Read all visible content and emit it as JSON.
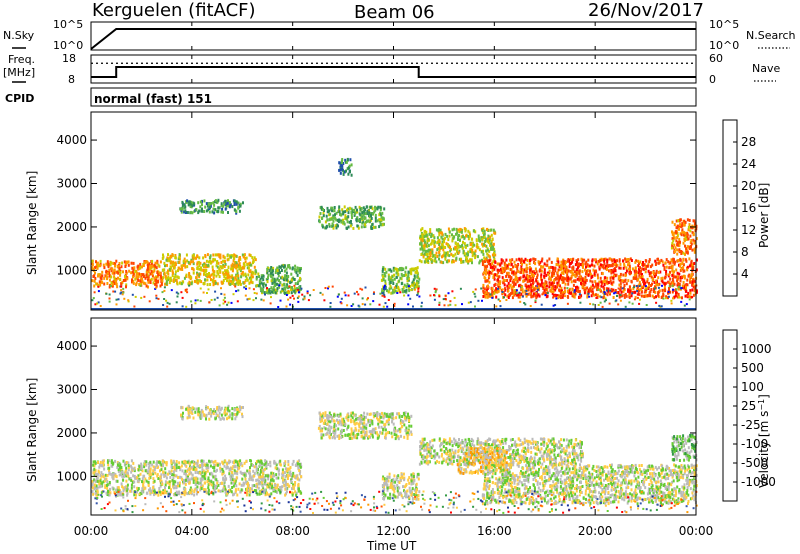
{
  "header": {
    "station": "Kerguelen (fitACF)",
    "beam": "Beam 06",
    "date": "26/Nov/2017"
  },
  "side_labels": {
    "nsky": "N.Sky",
    "freq_line1": "Freq.",
    "freq_line2": "[MHz]",
    "cpid": "CPID",
    "nsearch": "N.Search",
    "nave": "Nave"
  },
  "cpid_text": "normal (fast) 151",
  "x_axis": {
    "label": "Time UT",
    "ticks": [
      "00:00",
      "04:00",
      "08:00",
      "12:00",
      "16:00",
      "20:00",
      "00:00"
    ]
  },
  "colors": {
    "power": [
      "#0000ff",
      "#1f4faa",
      "#2e8b57",
      "#66bb44",
      "#cccc00",
      "#ff9900",
      "#ff4400",
      "#ff0000"
    ],
    "velocity": [
      "#ff0000",
      "#ff5500",
      "#ff9900",
      "#ffcc44",
      "#bbbbbb",
      "#66cc33",
      "#339944",
      "#3355aa",
      "#1a3399"
    ]
  },
  "chart_data": [
    {
      "type": "line",
      "title": "N.Sky / N.Search",
      "y_ticks_left": [
        "10^5",
        "10^0"
      ],
      "y_ticks_right": [
        "10^5",
        "10^0"
      ],
      "x": [
        "00:00",
        "01:00",
        "13:00",
        "24:00"
      ],
      "series": [
        {
          "name": "N.Sky",
          "values": [
            0.1,
            10000.0,
            10000.0,
            10000.0
          ]
        },
        {
          "name": "N.Search",
          "values": [
            0,
            0,
            0,
            0
          ]
        }
      ]
    },
    {
      "type": "line",
      "title": "Freq. / Nave",
      "y_ticks_left": [
        "18",
        "8"
      ],
      "y_ticks_right": [
        "60",
        "0"
      ],
      "x": [
        "00:00",
        "01:00",
        "01:00",
        "13:00",
        "13:00",
        "24:00"
      ],
      "series": [
        {
          "name": "Freq. [MHz]",
          "values": [
            10,
            10,
            14,
            14,
            10,
            10
          ]
        },
        {
          "name": "Nave",
          "values": [
            45,
            45,
            45,
            45,
            45,
            45
          ]
        }
      ]
    },
    {
      "type": "heatmap",
      "ylabel": "Slant Range [km]",
      "xlabel": "Time UT",
      "y_ticks": [
        "1000",
        "2000",
        "3000",
        "4000"
      ],
      "ylim": [
        180,
        4600
      ],
      "colorbar": {
        "label": "Power [dB]",
        "ticks": [
          "4",
          "8",
          "12",
          "16",
          "20",
          "24",
          "28"
        ],
        "range": [
          0,
          30
        ]
      },
      "regions": [
        {
          "t": [
            0.0,
            2.8
          ],
          "r": [
            650,
            1250
          ],
          "value": 22
        },
        {
          "t": [
            2.8,
            6.5
          ],
          "r": [
            700,
            1400
          ],
          "value": 18
        },
        {
          "t": [
            6.5,
            8.3
          ],
          "r": [
            500,
            1150
          ],
          "value": 12
        },
        {
          "t": [
            3.5,
            6.0
          ],
          "r": [
            2350,
            2650
          ],
          "value": 10
        },
        {
          "t": [
            9.0,
            11.6
          ],
          "r": [
            2000,
            2500
          ],
          "value": 12
        },
        {
          "t": [
            9.8,
            10.3
          ],
          "r": [
            3200,
            3600
          ],
          "value": 8
        },
        {
          "t": [
            11.5,
            13.0
          ],
          "r": [
            500,
            1100
          ],
          "value": 14
        },
        {
          "t": [
            13.0,
            16.0
          ],
          "r": [
            1200,
            2000
          ],
          "value": 16
        },
        {
          "t": [
            15.5,
            24.0
          ],
          "r": [
            400,
            1300
          ],
          "value": 24
        },
        {
          "t": [
            23.0,
            24.0
          ],
          "r": [
            1400,
            2200
          ],
          "value": 22
        }
      ]
    },
    {
      "type": "heatmap",
      "ylabel": "Slant Range [km]",
      "xlabel": "Time UT",
      "y_ticks": [
        "1000",
        "2000",
        "3000",
        "4000"
      ],
      "ylim": [
        180,
        4600
      ],
      "colorbar": {
        "label": "Velocity [m s^-1]",
        "ticks": [
          "-1000",
          "-500",
          "-100",
          "-25",
          "25",
          "100",
          "500",
          "1000"
        ],
        "range": [
          -1250,
          1250
        ]
      },
      "regions": [
        {
          "t": [
            0.0,
            8.3
          ],
          "r": [
            600,
            1400
          ],
          "value": 0
        },
        {
          "t": [
            3.5,
            6.0
          ],
          "r": [
            2350,
            2650
          ],
          "value": 0
        },
        {
          "t": [
            9.0,
            12.7
          ],
          "r": [
            1900,
            2500
          ],
          "value": 0
        },
        {
          "t": [
            11.5,
            13.0
          ],
          "r": [
            500,
            1100
          ],
          "value": 0
        },
        {
          "t": [
            13.0,
            19.5
          ],
          "r": [
            1300,
            1900
          ],
          "value": 0
        },
        {
          "t": [
            14.5,
            16.5
          ],
          "r": [
            1100,
            1700
          ],
          "value": -250
        },
        {
          "t": [
            15.5,
            24.0
          ],
          "r": [
            400,
            1300
          ],
          "value": 0
        },
        {
          "t": [
            23.0,
            24.0
          ],
          "r": [
            1400,
            2000
          ],
          "value": 300
        }
      ]
    }
  ]
}
